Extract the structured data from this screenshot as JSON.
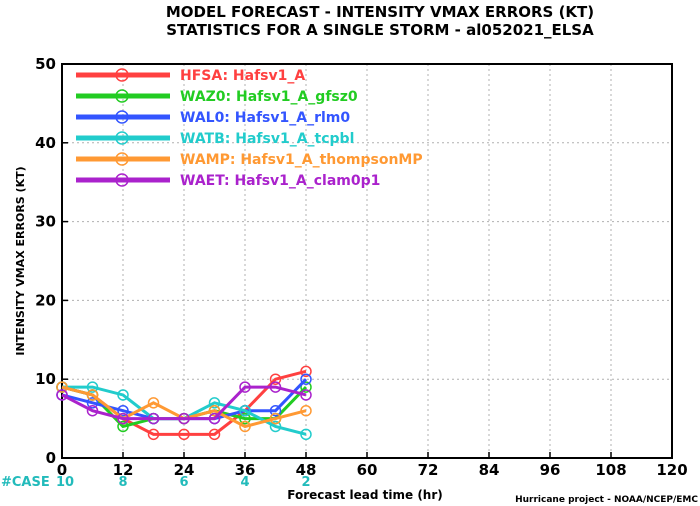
{
  "chart_data": {
    "type": "line",
    "title": "MODEL FORECAST - INTENSITY VMAX ERRORS (KT)",
    "subtitle": "STATISTICS FOR A SINGLE STORM - al052021_ELSA",
    "xlabel": "Forecast lead time (hr)",
    "ylabel": "INTENSITY VMAX ERRORS (KT)",
    "xlim": [
      0,
      120
    ],
    "ylim": [
      0,
      50
    ],
    "xticks": [
      0,
      12,
      24,
      36,
      48,
      60,
      72,
      84,
      96,
      108,
      120
    ],
    "yticks": [
      0,
      10,
      20,
      30,
      40,
      50
    ],
    "grid": true,
    "legend_position": "top-left",
    "x": [
      0,
      6,
      12,
      18,
      24,
      30,
      36,
      42,
      48
    ],
    "series": [
      {
        "label": "HFSA:",
        "name": "Hafsv1_A",
        "color": "#ff4040",
        "values": [
          9,
          8,
          5,
          3,
          3,
          3,
          6,
          10,
          11
        ]
      },
      {
        "label": "WAZ0:",
        "name": "Hafsv1_A_gfsz0",
        "color": "#22cc22",
        "values": [
          9,
          8,
          4,
          5,
          5,
          6,
          5,
          5,
          9
        ]
      },
      {
        "label": "WAL0:",
        "name": "Hafsv1_A_rlm0",
        "color": "#3355ff",
        "values": [
          8,
          7,
          6,
          5,
          5,
          5,
          6,
          6,
          10
        ]
      },
      {
        "label": "WATB:",
        "name": "Hafsv1_A_tcpbl",
        "color": "#22cccc",
        "values": [
          9,
          9,
          8,
          5,
          5,
          7,
          6,
          4,
          3
        ]
      },
      {
        "label": "WAMP:",
        "name": "Hafsv1_A_thompsonMP",
        "color": "#ff9933",
        "values": [
          9,
          8,
          5,
          7,
          5,
          6,
          4,
          5,
          6
        ]
      },
      {
        "label": "WAET:",
        "name": "Hafsv1_A_clam0p1",
        "color": "#aa22cc",
        "values": [
          8,
          6,
          5,
          5,
          5,
          5,
          9,
          9,
          8
        ]
      }
    ],
    "case_label": "#CASE",
    "case_color": "#22bbbb",
    "cases": [
      {
        "x": 0,
        "label": "10"
      },
      {
        "x": 12,
        "label": "8"
      },
      {
        "x": 24,
        "label": "6"
      },
      {
        "x": 36,
        "label": "4"
      },
      {
        "x": 48,
        "label": "2"
      }
    ],
    "credit": "Hurricane project - NOAA/NCEP/EMC"
  }
}
